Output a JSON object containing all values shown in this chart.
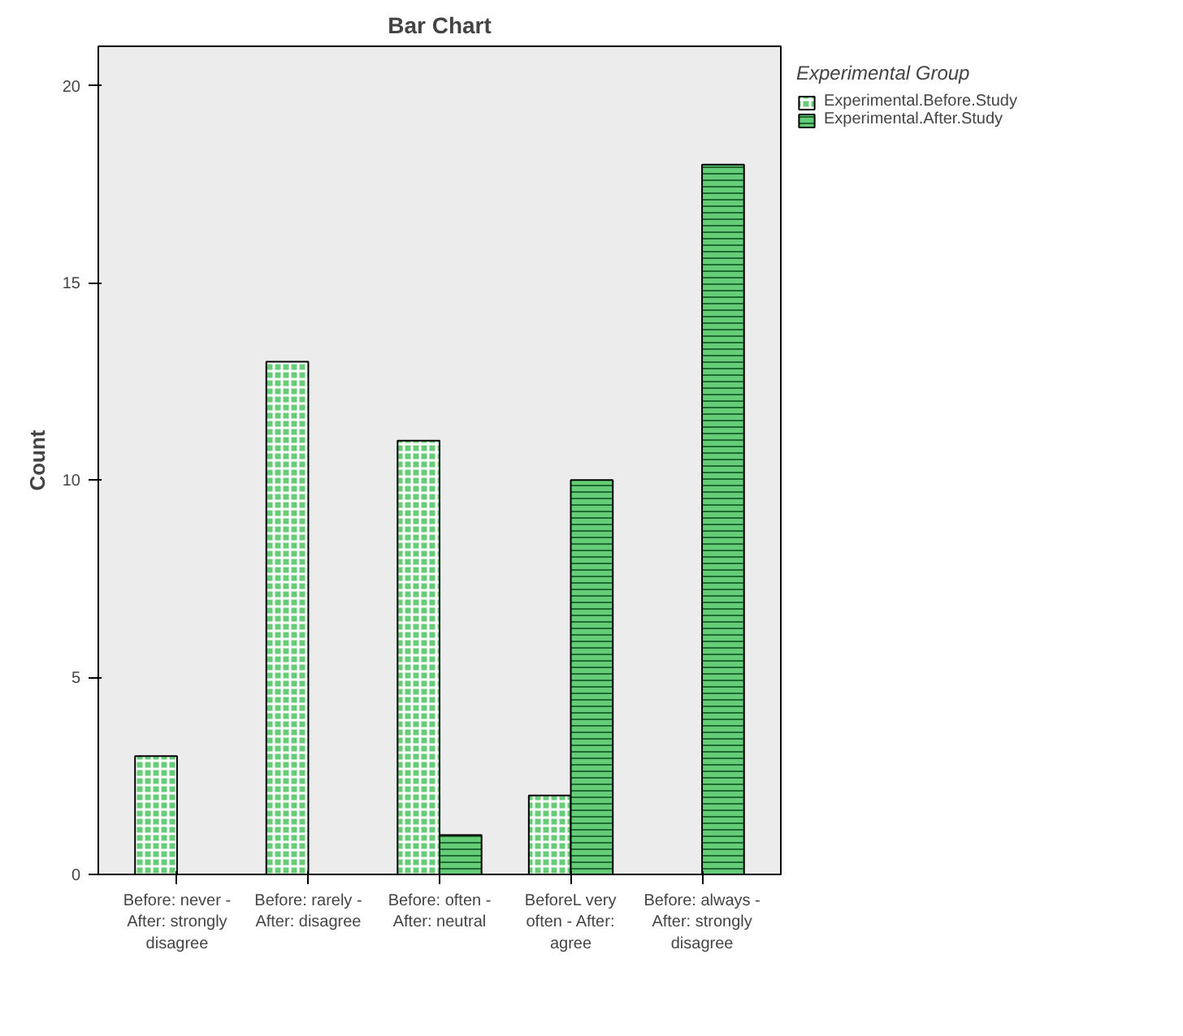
{
  "chart_data": {
    "type": "bar",
    "title": "Bar Chart",
    "ylabel": "Count",
    "legend_title": "Experimental Group",
    "legend": "top right",
    "grid": false,
    "categories": [
      "Before: never - After: strongly disagree",
      "Before: rarely - After: disagree",
      "Before: often - After: neutral",
      "BeforeL very often - After: agree",
      "Before: always - After: strongly disagree"
    ],
    "series": [
      {
        "name": "Experimental.Before.Study",
        "color": "#66cc77",
        "values": [
          3,
          13,
          11,
          2,
          null
        ]
      },
      {
        "name": "Experimental.After.Study",
        "color": "#66cc77",
        "values": [
          null,
          null,
          1,
          10,
          18
        ]
      }
    ],
    "ylim": [
      0,
      21
    ],
    "yticks": [
      0,
      5,
      10,
      15,
      20
    ]
  }
}
